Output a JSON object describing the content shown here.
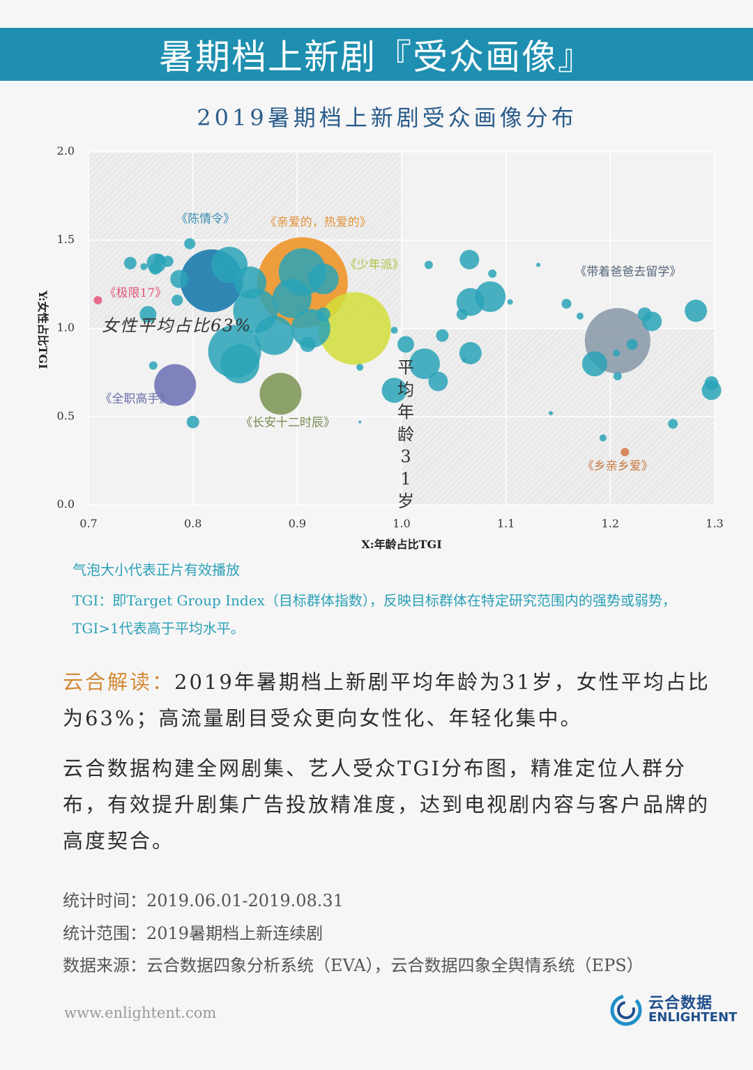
{
  "header": {
    "title": "暑期档上新剧『受众画像』"
  },
  "chart_data": {
    "type": "scatter",
    "title": "2019暑期档上新剧受众画像分布",
    "xlabel": "X:年龄占比TGI",
    "ylabel": "Y:女性占比TGI",
    "xlim": [
      0.7,
      1.3
    ],
    "ylim": [
      0.0,
      2.0
    ],
    "xticks": [
      "0.7",
      "0.8",
      "0.9",
      "1.0",
      "1.1",
      "1.2",
      "1.3"
    ],
    "yticks": [
      "0.0",
      "0.5",
      "1.0",
      "1.5",
      "2.0"
    ],
    "avg_x": 1.0,
    "avg_y": 1.0,
    "avg_age_label": "平均年龄31岁",
    "avg_female_label": "女性平均占比63%",
    "bubble_note": "气泡大小代表正片有效播放",
    "labels": [
      {
        "text": "《陈情令》",
        "x": 0.812,
        "y": 1.6,
        "color": "#3b8fb5"
      },
      {
        "text": "《亲爱的，热爱的》",
        "x": 0.92,
        "y": 1.58,
        "color": "#e2923a"
      },
      {
        "text": "《少年派》",
        "x": 0.974,
        "y": 1.34,
        "color": "#a9c23c"
      },
      {
        "text": "《极限17》",
        "x": 0.745,
        "y": 1.18,
        "color": "#e0557a"
      },
      {
        "text": "《全职高手》",
        "x": 0.745,
        "y": 0.58,
        "color": "#6a6fa8"
      },
      {
        "text": "《长安十二时辰》",
        "x": 0.891,
        "y": 0.445,
        "color": "#77894f"
      },
      {
        "text": "《带着爸爸去留学》",
        "x": 1.217,
        "y": 1.3,
        "color": "#55657a"
      },
      {
        "text": "《乡亲乡爱》",
        "x": 1.207,
        "y": 0.2,
        "color": "#c8783f"
      }
    ],
    "series": [
      {
        "name": "featured",
        "points": [
          {
            "x": 0.905,
            "y": 1.26,
            "size": 65,
            "color": "#ee8f1f"
          },
          {
            "x": 0.955,
            "y": 1.0,
            "size": 52,
            "color": "#d2de3a"
          },
          {
            "x": 0.818,
            "y": 1.27,
            "size": 45,
            "color": "#0e74a8"
          },
          {
            "x": 1.207,
            "y": 0.93,
            "size": 47,
            "color": "#8796a7"
          },
          {
            "x": 0.783,
            "y": 0.68,
            "size": 30,
            "color": "#6c6fb4"
          },
          {
            "x": 0.884,
            "y": 0.63,
            "size": 30,
            "color": "#7b9352"
          },
          {
            "x": 0.709,
            "y": 1.16,
            "size": 6,
            "color": "#e8557a"
          },
          {
            "x": 1.214,
            "y": 0.3,
            "size": 6,
            "color": "#d37745"
          }
        ]
      },
      {
        "name": "others",
        "points": [
          {
            "x": 0.905,
            "y": 1.32,
            "size": 34,
            "color": "#2aa3b7"
          },
          {
            "x": 0.86,
            "y": 1.1,
            "size": 32,
            "color": "#2aa3b7"
          },
          {
            "x": 0.895,
            "y": 1.17,
            "size": 28,
            "color": "#2aa3b7"
          },
          {
            "x": 0.835,
            "y": 1.36,
            "size": 26,
            "color": "#2aa3b7"
          },
          {
            "x": 0.855,
            "y": 1.26,
            "size": 23,
            "color": "#2aa3b7"
          },
          {
            "x": 0.84,
            "y": 0.87,
            "size": 38,
            "color": "#2aa3b7"
          },
          {
            "x": 0.878,
            "y": 0.96,
            "size": 28,
            "color": "#2aa3b7"
          },
          {
            "x": 0.913,
            "y": 1.0,
            "size": 28,
            "color": "#2aa3b7"
          },
          {
            "x": 0.845,
            "y": 0.8,
            "size": 28,
            "color": "#2aa3b7"
          },
          {
            "x": 0.925,
            "y": 1.28,
            "size": 22,
            "color": "#2aa3b7"
          },
          {
            "x": 1.022,
            "y": 0.8,
            "size": 22,
            "color": "#2aa3b7"
          },
          {
            "x": 0.993,
            "y": 0.65,
            "size": 18,
            "color": "#2aa3b7"
          },
          {
            "x": 1.085,
            "y": 1.18,
            "size": 22,
            "color": "#2aa3b7"
          },
          {
            "x": 1.066,
            "y": 1.15,
            "size": 20,
            "color": "#2aa3b7"
          },
          {
            "x": 1.066,
            "y": 0.86,
            "size": 16,
            "color": "#2aa3b7"
          },
          {
            "x": 1.035,
            "y": 0.7,
            "size": 14,
            "color": "#2aa3b7"
          },
          {
            "x": 1.065,
            "y": 1.39,
            "size": 14,
            "color": "#2aa3b7"
          },
          {
            "x": 1.185,
            "y": 0.8,
            "size": 18,
            "color": "#2aa3b7"
          },
          {
            "x": 1.24,
            "y": 1.04,
            "size": 14,
            "color": "#2aa3b7"
          },
          {
            "x": 1.282,
            "y": 1.1,
            "size": 16,
            "color": "#2aa3b7"
          },
          {
            "x": 1.297,
            "y": 0.65,
            "size": 14,
            "color": "#2aa3b7"
          },
          {
            "x": 1.297,
            "y": 0.69,
            "size": 10,
            "color": "#2aa3b7"
          },
          {
            "x": 0.757,
            "y": 1.08,
            "size": 12,
            "color": "#2aa3b7"
          },
          {
            "x": 0.765,
            "y": 1.37,
            "size": 14,
            "color": "#2aa3b7"
          },
          {
            "x": 0.787,
            "y": 1.28,
            "size": 13,
            "color": "#2aa3b7"
          },
          {
            "x": 0.74,
            "y": 1.37,
            "size": 9,
            "color": "#2aa3b7"
          },
          {
            "x": 0.764,
            "y": 1.34,
            "size": 9,
            "color": "#2aa3b7"
          },
          {
            "x": 0.797,
            "y": 1.48,
            "size": 8,
            "color": "#2aa3b7"
          },
          {
            "x": 0.768,
            "y": 1.39,
            "size": 8,
            "color": "#2aa3b7"
          },
          {
            "x": 0.776,
            "y": 1.38,
            "size": 8,
            "color": "#2aa3b7"
          },
          {
            "x": 0.785,
            "y": 1.16,
            "size": 8,
            "color": "#2aa3b7"
          },
          {
            "x": 0.753,
            "y": 1.35,
            "size": 5,
            "color": "#2aa3b7"
          },
          {
            "x": 0.762,
            "y": 0.79,
            "size": 6,
            "color": "#2aa3b7"
          },
          {
            "x": 0.8,
            "y": 0.47,
            "size": 9,
            "color": "#2aa3b7"
          },
          {
            "x": 0.91,
            "y": 0.91,
            "size": 11,
            "color": "#2aa3b7"
          },
          {
            "x": 0.925,
            "y": 1.08,
            "size": 10,
            "color": "#2aa3b7"
          },
          {
            "x": 1.004,
            "y": 0.91,
            "size": 12,
            "color": "#2aa3b7"
          },
          {
            "x": 1.039,
            "y": 0.96,
            "size": 9,
            "color": "#2aa3b7"
          },
          {
            "x": 1.058,
            "y": 1.08,
            "size": 8,
            "color": "#2aa3b7"
          },
          {
            "x": 1.026,
            "y": 1.36,
            "size": 6,
            "color": "#2aa3b7"
          },
          {
            "x": 1.087,
            "y": 1.31,
            "size": 6,
            "color": "#2aa3b7"
          },
          {
            "x": 1.104,
            "y": 1.15,
            "size": 4,
            "color": "#2aa3b7"
          },
          {
            "x": 1.131,
            "y": 1.36,
            "size": 3,
            "color": "#2aa3b7"
          },
          {
            "x": 1.158,
            "y": 1.14,
            "size": 7,
            "color": "#2aa3b7"
          },
          {
            "x": 1.171,
            "y": 1.07,
            "size": 5,
            "color": "#2aa3b7"
          },
          {
            "x": 1.233,
            "y": 1.08,
            "size": 10,
            "color": "#2aa3b7"
          },
          {
            "x": 1.221,
            "y": 0.91,
            "size": 8,
            "color": "#2aa3b7"
          },
          {
            "x": 1.206,
            "y": 0.86,
            "size": 5,
            "color": "#2aa3b7"
          },
          {
            "x": 1.207,
            "y": 0.73,
            "size": 6,
            "color": "#2aa3b7"
          },
          {
            "x": 1.193,
            "y": 0.38,
            "size": 5,
            "color": "#2aa3b7"
          },
          {
            "x": 1.26,
            "y": 0.46,
            "size": 7,
            "color": "#2aa3b7"
          },
          {
            "x": 1.143,
            "y": 0.52,
            "size": 3,
            "color": "#2aa3b7"
          },
          {
            "x": 1.06,
            "y": 0.82,
            "size": 3,
            "color": "#2aa3b7"
          },
          {
            "x": 0.96,
            "y": 0.78,
            "size": 5,
            "color": "#2aa3b7"
          },
          {
            "x": 0.993,
            "y": 0.99,
            "size": 5,
            "color": "#2aa3b7"
          },
          {
            "x": 0.96,
            "y": 0.47,
            "size": 2,
            "color": "#2aa3b7"
          }
        ]
      }
    ]
  },
  "notes": {
    "tgi": "TGI：即Target Group Index（目标群体指数），反映目标群体在特定研究范围内的强势或弱势，TGI>1代表高于平均水平。"
  },
  "analysis": {
    "label": "云合解读：",
    "p1": "2019年暑期档上新剧平均年龄为31岁，女性平均占比为63%；高流量剧目受众更向女性化、年轻化集中。",
    "p2": "云合数据构建全网剧集、艺人受众TGI分布图，精准定位人群分布，有效提升剧集广告投放精准度，达到电视剧内容与客户品牌的高度契合。"
  },
  "meta": {
    "time": "统计时间：2019.06.01-2019.08.31",
    "scope": "统计范围：2019暑期档上新连续剧",
    "source": "数据来源：云合数据四象分析系统（EVA），云合数据四象全舆情系统（EPS）"
  },
  "footer": {
    "site": "www.enlightent.com",
    "brand_cn": "云合数据",
    "brand_en": "ENLIGHTENT"
  }
}
